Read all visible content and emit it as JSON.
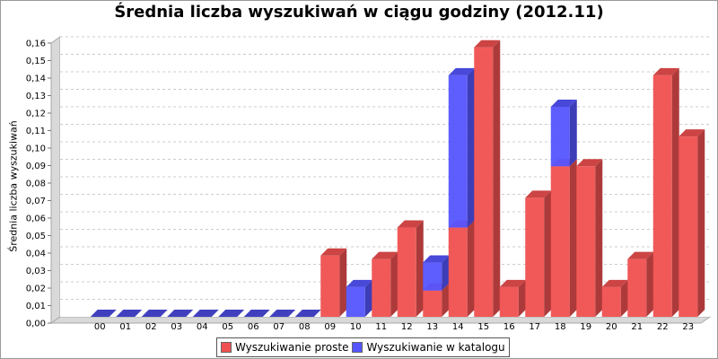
{
  "chart_data": {
    "type": "bar",
    "title": "Średnia liczba wyszukiwań w ciągu godziny (2012.11)",
    "xlabel": "",
    "ylabel": "Średnia liczba wyszukiwań",
    "ylim": [
      0,
      0.16
    ],
    "yticks": [
      "0,00",
      "0,01",
      "0,02",
      "0,03",
      "0,04",
      "0,05",
      "0,06",
      "0,07",
      "0,08",
      "0,09",
      "0,10",
      "0,11",
      "0,12",
      "0,13",
      "0,14",
      "0,15",
      "0,16"
    ],
    "categories": [
      "00",
      "01",
      "02",
      "03",
      "04",
      "05",
      "06",
      "07",
      "08",
      "09",
      "10",
      "11",
      "12",
      "13",
      "14",
      "15",
      "16",
      "17",
      "18",
      "19",
      "20",
      "21",
      "22",
      "23"
    ],
    "stacked": true,
    "grid": true,
    "legend_position": "bottom",
    "series": [
      {
        "name": "Wyszukiwanie proste",
        "color": "#f05050",
        "values": [
          0,
          0,
          0,
          0,
          0,
          0,
          0,
          0,
          0,
          0.035,
          0,
          0.033,
          0.051,
          0.015,
          0.051,
          0.154,
          0.017,
          0.068,
          0.086,
          0.086,
          0.017,
          0.033,
          0.138,
          0.103
        ]
      },
      {
        "name": "Wyszukiwanie w katalogu",
        "color": "#5555ff",
        "values": [
          0,
          0,
          0,
          0,
          0,
          0,
          0,
          0,
          0,
          0,
          0.017,
          0,
          0,
          0.016,
          0.087,
          0,
          0,
          0,
          0.034,
          0,
          0,
          0,
          0,
          0
        ]
      }
    ]
  }
}
